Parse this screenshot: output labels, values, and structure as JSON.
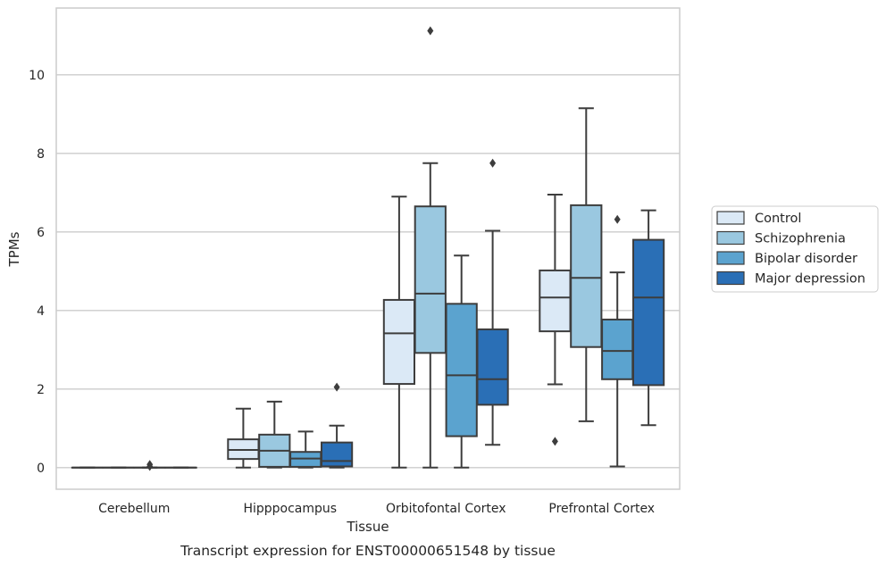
{
  "chart_data": {
    "type": "box",
    "xlabel": "Tissue",
    "ylabel": "TPMs",
    "caption": "Transcript expression for ENST00000651548 by tissue",
    "ylim": [
      -0.55,
      11.7
    ],
    "yticks": [
      0,
      2,
      4,
      6,
      8,
      10
    ],
    "grid": true,
    "legend_position": "right",
    "categories": [
      "Cerebellum",
      "Hipppocampus",
      "Orbitofontal Cortex",
      "Prefrontal Cortex"
    ],
    "series": [
      {
        "name": "Control",
        "color": "#dbe9f6",
        "boxes": [
          {
            "whislo": 0,
            "q1": 0,
            "med": 0,
            "q3": 0,
            "whishi": 0,
            "fliers": []
          },
          {
            "whislo": 0,
            "q1": 0.22,
            "med": 0.45,
            "q3": 0.72,
            "whishi": 1.5,
            "fliers": []
          },
          {
            "whislo": 0,
            "q1": 2.13,
            "med": 3.42,
            "q3": 4.27,
            "whishi": 6.9,
            "fliers": []
          },
          {
            "whislo": 2.12,
            "q1": 3.47,
            "med": 4.33,
            "q3": 5.02,
            "whishi": 6.95,
            "fliers": [
              0.67
            ]
          }
        ]
      },
      {
        "name": "Schizophrenia",
        "color": "#9ac8e0",
        "boxes": [
          {
            "whislo": 0,
            "q1": 0,
            "med": 0,
            "q3": 0,
            "whishi": 0,
            "fliers": []
          },
          {
            "whislo": 0,
            "q1": 0.02,
            "med": 0.43,
            "q3": 0.84,
            "whishi": 1.68,
            "fliers": []
          },
          {
            "whislo": 0,
            "q1": 2.92,
            "med": 4.43,
            "q3": 6.65,
            "whishi": 7.75,
            "fliers": [
              11.12
            ]
          },
          {
            "whislo": 1.18,
            "q1": 3.07,
            "med": 4.83,
            "q3": 6.68,
            "whishi": 9.15,
            "fliers": []
          }
        ]
      },
      {
        "name": "Bipolar disorder",
        "color": "#5ba3cf",
        "boxes": [
          {
            "whislo": 0,
            "q1": 0,
            "med": 0,
            "q3": 0,
            "whishi": 0,
            "fliers": [
              0.03,
              0.08
            ]
          },
          {
            "whislo": 0,
            "q1": 0.02,
            "med": 0.23,
            "q3": 0.4,
            "whishi": 0.92,
            "fliers": []
          },
          {
            "whislo": 0,
            "q1": 0.8,
            "med": 2.35,
            "q3": 4.17,
            "whishi": 5.4,
            "fliers": []
          },
          {
            "whislo": 0.03,
            "q1": 2.25,
            "med": 2.97,
            "q3": 3.77,
            "whishi": 4.97,
            "fliers": [
              6.32
            ]
          }
        ]
      },
      {
        "name": "Major depression",
        "color": "#2a6fb6",
        "boxes": [
          {
            "whislo": 0,
            "q1": 0,
            "med": 0,
            "q3": 0,
            "whishi": 0,
            "fliers": []
          },
          {
            "whislo": 0,
            "q1": 0.03,
            "med": 0.17,
            "q3": 0.64,
            "whishi": 1.07,
            "fliers": [
              2.05
            ]
          },
          {
            "whislo": 0.58,
            "q1": 1.6,
            "med": 2.25,
            "q3": 3.52,
            "whishi": 6.03,
            "fliers": [
              7.75
            ]
          },
          {
            "whislo": 1.08,
            "q1": 2.1,
            "med": 4.33,
            "q3": 5.8,
            "whishi": 6.55,
            "fliers": []
          }
        ]
      }
    ]
  }
}
